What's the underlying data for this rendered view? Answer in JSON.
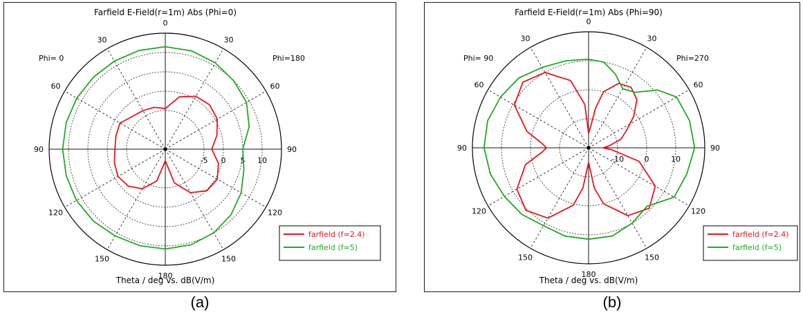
{
  "chart_data": [
    {
      "type": "polar",
      "caption": "(a)",
      "title": "Farfield E-Field(r=1m) Abs (Phi=0)",
      "xlabel": "Theta / deg vs. dB(V/m)",
      "phi_left_label": "Phi=  0",
      "phi_right_label": "Phi=180",
      "angle_labels": [
        "0",
        "30",
        "60",
        "90",
        "120",
        "150",
        "180",
        "150",
        "120",
        "90",
        "60",
        "30"
      ],
      "angle_positions_deg": [
        0,
        30,
        60,
        90,
        120,
        150,
        180,
        210,
        240,
        270,
        300,
        330
      ],
      "radial_tick_labels": [
        "-5",
        "0",
        "5",
        "10"
      ],
      "radial_tick_values": [
        -5,
        0,
        5,
        10
      ],
      "r_min": -15,
      "r_max": 15,
      "series": [
        {
          "name": "farfield (f=2.4)",
          "color": "#e8141b",
          "theta": [
            0,
            15,
            30,
            45,
            60,
            75,
            90,
            105,
            120,
            135,
            150,
            165,
            180,
            195,
            210,
            225,
            240,
            255,
            270,
            285,
            300,
            315,
            330,
            345
          ],
          "values": [
            -4.5,
            -1.0,
            0.8,
            1.2,
            0.5,
            -1.2,
            -3.0,
            -0.8,
            0.5,
            0.2,
            -2.0,
            -6.0,
            -12.0,
            -6.5,
            -3.2,
            -1.5,
            -0.9,
            -1.4,
            -2.0,
            -1.8,
            -1.5,
            -3.0,
            -3.5,
            -3.8
          ]
        },
        {
          "name": "farfield (f=5)",
          "color": "#1faa1f",
          "theta": [
            0,
            15,
            30,
            45,
            60,
            75,
            90,
            105,
            120,
            135,
            150,
            165,
            180,
            195,
            210,
            225,
            240,
            255,
            270,
            285,
            300,
            315,
            330,
            345
          ],
          "values": [
            11.5,
            11.3,
            10.8,
            10.0,
            9.2,
            7.4,
            5.0,
            6.0,
            7.6,
            9.0,
            10.0,
            10.6,
            10.8,
            10.8,
            10.9,
            11.3,
            11.5,
            11.5,
            11.5,
            11.5,
            11.4,
            11.3,
            11.3,
            11.4
          ]
        }
      ],
      "legend_position": "bottom-right"
    },
    {
      "type": "polar",
      "caption": "(b)",
      "title": "Farfield E-Field(r=1m) Abs (Phi=90)",
      "xlabel": "Theta / deg vs. dB(V/m)",
      "phi_left_label": "Phi= 90",
      "phi_right_label": "Phi=270",
      "angle_labels": [
        "0",
        "30",
        "60",
        "90",
        "120",
        "150",
        "180",
        "150",
        "120",
        "90",
        "60",
        "30"
      ],
      "angle_positions_deg": [
        0,
        30,
        60,
        90,
        120,
        150,
        180,
        210,
        240,
        270,
        300,
        330
      ],
      "radial_tick_labels": [
        "-10",
        "0",
        "10"
      ],
      "radial_tick_values": [
        -10,
        0,
        10
      ],
      "r_min": -20,
      "r_max": 20,
      "series": [
        {
          "name": "farfield (f=2.4)",
          "color": "#e8141b",
          "theta": [
            0,
            5,
            10,
            15,
            25,
            35,
            45,
            55,
            65,
            75,
            85,
            90,
            95,
            105,
            120,
            135,
            150,
            165,
            172,
            180,
            188,
            195,
            210,
            225,
            240,
            255,
            265,
            270,
            275,
            285,
            300,
            315,
            330,
            345,
            355
          ],
          "values": [
            -15.0,
            -13.0,
            -6.0,
            0.0,
            4.5,
            5.5,
            3.5,
            -1.0,
            -5.5,
            -8.5,
            -13.0,
            -15.0,
            -12.0,
            -2.0,
            6.5,
            9.5,
            7.0,
            0.0,
            -6.0,
            -15.0,
            -6.0,
            0.5,
            8.0,
            10.5,
            8.5,
            2.5,
            -4.0,
            -5.5,
            -4.0,
            2.0,
            9.5,
            12.0,
            10.0,
            4.0,
            -5.0
          ]
        },
        {
          "name": "farfield (f=5)",
          "color": "#1faa1f",
          "theta": [
            0,
            10,
            20,
            30,
            40,
            50,
            60,
            75,
            90,
            105,
            120,
            135,
            150,
            165,
            180,
            195,
            210,
            225,
            240,
            255,
            270,
            285,
            300,
            315,
            330,
            345,
            355
          ],
          "values": [
            10.5,
            10.0,
            7.0,
            3.5,
            5.0,
            11.0,
            15.0,
            16.0,
            16.5,
            15.0,
            14.0,
            8.5,
            10.0,
            11.5,
            11.5,
            11.5,
            11.0,
            12.5,
            13.5,
            15.0,
            16.0,
            16.0,
            15.0,
            14.0,
            12.0,
            11.0,
            10.5
          ]
        }
      ],
      "legend_position": "bottom-right"
    }
  ]
}
